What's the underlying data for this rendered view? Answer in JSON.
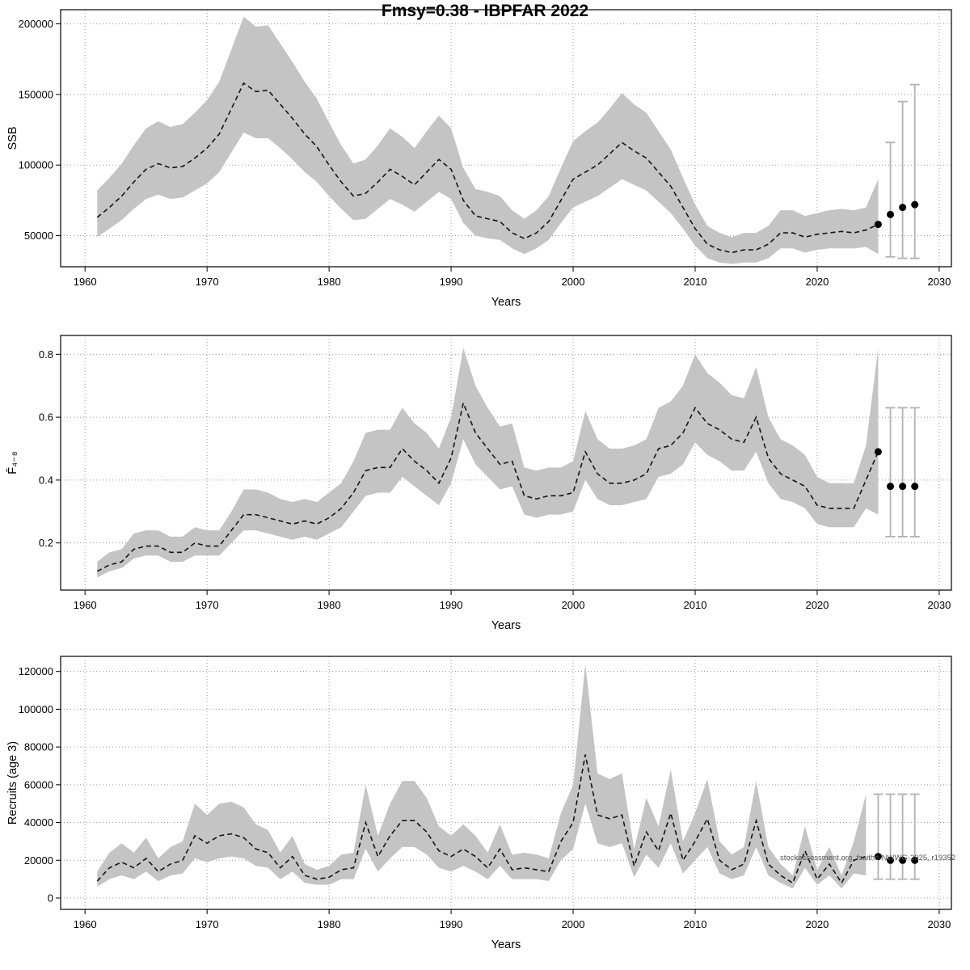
{
  "title": "Fmsy=0.38 - IBPFAR 2022",
  "watermark": "stockassessment.org, fsaithe-NWWG-2025, r19352",
  "chart_data": [
    {
      "type": "line",
      "name": "ssb",
      "title": "",
      "xlabel": "Years",
      "ylabel": "SSB",
      "xlim": [
        1958,
        2031
      ],
      "ylim": [
        28000,
        210000
      ],
      "xticks": [
        1960,
        1970,
        1980,
        1990,
        2000,
        2010,
        2020,
        2030
      ],
      "yticks": [
        50000,
        100000,
        150000,
        200000
      ],
      "grid": true,
      "legend": "none",
      "line_style": "dashed",
      "band_color": "#c4c4c4",
      "years": [
        1961,
        1962,
        1963,
        1964,
        1965,
        1966,
        1967,
        1968,
        1969,
        1970,
        1971,
        1972,
        1973,
        1974,
        1975,
        1976,
        1977,
        1978,
        1979,
        1980,
        1981,
        1982,
        1983,
        1984,
        1985,
        1986,
        1987,
        1988,
        1989,
        1990,
        1991,
        1992,
        1993,
        1994,
        1995,
        1996,
        1997,
        1998,
        1999,
        2000,
        2001,
        2002,
        2003,
        2004,
        2005,
        2006,
        2007,
        2008,
        2009,
        2010,
        2011,
        2012,
        2013,
        2014,
        2015,
        2016,
        2017,
        2018,
        2019,
        2020,
        2021,
        2022,
        2023,
        2024,
        2025
      ],
      "mean": [
        63000,
        70000,
        78000,
        88000,
        97000,
        101000,
        98000,
        99000,
        105000,
        112000,
        122000,
        140000,
        158000,
        152000,
        153000,
        143000,
        133000,
        122000,
        113000,
        100000,
        88000,
        78000,
        80000,
        88000,
        97000,
        92000,
        86000,
        95000,
        104000,
        97000,
        75000,
        64000,
        62000,
        60000,
        52000,
        48000,
        52000,
        60000,
        75000,
        90000,
        95000,
        100000,
        108000,
        116000,
        110000,
        105000,
        95000,
        85000,
        70000,
        55000,
        44000,
        40000,
        38000,
        40000,
        40000,
        44000,
        52000,
        52000,
        49000,
        51000,
        52000,
        53000,
        52000,
        54000,
        58000
      ],
      "lo": [
        49000,
        55000,
        61000,
        69000,
        76000,
        79000,
        76000,
        77000,
        82000,
        87000,
        95000,
        109000,
        123000,
        119000,
        119000,
        112000,
        104000,
        95000,
        88000,
        78000,
        69000,
        61000,
        62000,
        69000,
        76000,
        72000,
        67000,
        74000,
        81000,
        76000,
        59000,
        50000,
        48000,
        47000,
        41000,
        37000,
        41000,
        47000,
        59000,
        70000,
        74000,
        78000,
        84000,
        90000,
        86000,
        82000,
        74000,
        66000,
        55000,
        43000,
        34000,
        31000,
        30000,
        31000,
        31000,
        34000,
        41000,
        41000,
        38000,
        40000,
        41000,
        41000,
        41000,
        42000,
        37000
      ],
      "hi": [
        82000,
        91000,
        101000,
        114000,
        126000,
        131000,
        127000,
        129000,
        137000,
        146000,
        159000,
        182000,
        205000,
        198000,
        199000,
        186000,
        173000,
        159000,
        147000,
        130000,
        114000,
        101000,
        104000,
        114000,
        126000,
        120000,
        112000,
        124000,
        135000,
        126000,
        98000,
        83000,
        81000,
        78000,
        68000,
        62000,
        68000,
        78000,
        98000,
        117000,
        124000,
        130000,
        140000,
        151000,
        143000,
        137000,
        124000,
        111000,
        91000,
        72000,
        57000,
        52000,
        49000,
        52000,
        52000,
        57000,
        68000,
        68000,
        64000,
        66000,
        68000,
        69000,
        68000,
        70000,
        90000
      ],
      "end_dot": true,
      "forecast": {
        "x": [
          2026,
          2027,
          2028
        ],
        "y": [
          65000,
          70000,
          72000
        ],
        "lo": [
          35000,
          34000,
          34000
        ],
        "hi": [
          116000,
          145000,
          157000
        ]
      }
    },
    {
      "type": "line",
      "name": "fbar",
      "title": "",
      "xlabel": "Years",
      "ylabel": "F̄₄₋₈",
      "xlim": [
        1958,
        2031
      ],
      "ylim": [
        0.05,
        0.86
      ],
      "xticks": [
        1960,
        1970,
        1980,
        1990,
        2000,
        2010,
        2020,
        2030
      ],
      "yticks": [
        0.2,
        0.4,
        0.6,
        0.8
      ],
      "grid": true,
      "legend": "none",
      "line_style": "dashed",
      "band_color": "#c4c4c4",
      "years": [
        1961,
        1962,
        1963,
        1964,
        1965,
        1966,
        1967,
        1968,
        1969,
        1970,
        1971,
        1972,
        1973,
        1974,
        1975,
        1976,
        1977,
        1978,
        1979,
        1980,
        1981,
        1982,
        1983,
        1984,
        1985,
        1986,
        1987,
        1988,
        1989,
        1990,
        1991,
        1992,
        1993,
        1994,
        1995,
        1996,
        1997,
        1998,
        1999,
        2000,
        2001,
        2002,
        2003,
        2004,
        2005,
        2006,
        2007,
        2008,
        2009,
        2010,
        2011,
        2012,
        2013,
        2014,
        2015,
        2016,
        2017,
        2018,
        2019,
        2020,
        2021,
        2022,
        2023,
        2024,
        2025
      ],
      "mean": [
        0.11,
        0.13,
        0.14,
        0.18,
        0.19,
        0.19,
        0.17,
        0.17,
        0.2,
        0.19,
        0.19,
        0.24,
        0.29,
        0.29,
        0.28,
        0.27,
        0.26,
        0.27,
        0.26,
        0.28,
        0.31,
        0.36,
        0.43,
        0.44,
        0.44,
        0.5,
        0.46,
        0.43,
        0.39,
        0.47,
        0.645,
        0.55,
        0.5,
        0.45,
        0.46,
        0.35,
        0.34,
        0.35,
        0.35,
        0.36,
        0.49,
        0.42,
        0.39,
        0.39,
        0.4,
        0.42,
        0.5,
        0.51,
        0.55,
        0.63,
        0.58,
        0.56,
        0.53,
        0.52,
        0.6,
        0.47,
        0.42,
        0.4,
        0.38,
        0.32,
        0.31,
        0.31,
        0.31,
        0.4,
        0.49
      ],
      "lo": [
        0.09,
        0.11,
        0.12,
        0.15,
        0.16,
        0.16,
        0.14,
        0.14,
        0.16,
        0.16,
        0.16,
        0.2,
        0.24,
        0.24,
        0.23,
        0.22,
        0.21,
        0.22,
        0.21,
        0.23,
        0.25,
        0.3,
        0.35,
        0.36,
        0.36,
        0.41,
        0.38,
        0.35,
        0.32,
        0.39,
        0.53,
        0.45,
        0.41,
        0.37,
        0.38,
        0.29,
        0.28,
        0.29,
        0.29,
        0.3,
        0.4,
        0.34,
        0.32,
        0.32,
        0.33,
        0.34,
        0.41,
        0.42,
        0.45,
        0.52,
        0.48,
        0.46,
        0.43,
        0.43,
        0.49,
        0.39,
        0.34,
        0.33,
        0.31,
        0.26,
        0.25,
        0.25,
        0.25,
        0.31,
        0.29
      ],
      "hi": [
        0.14,
        0.17,
        0.18,
        0.23,
        0.24,
        0.24,
        0.22,
        0.22,
        0.25,
        0.24,
        0.24,
        0.3,
        0.37,
        0.37,
        0.36,
        0.34,
        0.33,
        0.34,
        0.33,
        0.36,
        0.39,
        0.46,
        0.55,
        0.56,
        0.56,
        0.63,
        0.58,
        0.55,
        0.5,
        0.6,
        0.82,
        0.7,
        0.63,
        0.57,
        0.58,
        0.44,
        0.43,
        0.44,
        0.44,
        0.46,
        0.62,
        0.53,
        0.5,
        0.5,
        0.51,
        0.53,
        0.63,
        0.65,
        0.7,
        0.8,
        0.74,
        0.71,
        0.67,
        0.66,
        0.76,
        0.6,
        0.53,
        0.51,
        0.48,
        0.41,
        0.39,
        0.39,
        0.39,
        0.51,
        0.82
      ],
      "end_dot": true,
      "forecast": {
        "x": [
          2026,
          2027,
          2028
        ],
        "y": [
          0.38,
          0.38,
          0.38
        ],
        "lo": [
          0.22,
          0.22,
          0.22
        ],
        "hi": [
          0.63,
          0.63,
          0.63
        ]
      }
    },
    {
      "type": "line",
      "name": "recruitment",
      "title": "",
      "xlabel": "Years",
      "ylabel": "Recruits (age 3)",
      "xlim": [
        1958,
        2031
      ],
      "ylim": [
        -6000,
        128000
      ],
      "xticks": [
        1960,
        1970,
        1980,
        1990,
        2000,
        2010,
        2020,
        2030
      ],
      "yticks": [
        0,
        20000,
        40000,
        60000,
        80000,
        100000,
        120000
      ],
      "grid": true,
      "legend": "none",
      "line_style": "dashed",
      "band_color": "#c4c4c4",
      "years": [
        1961,
        1962,
        1963,
        1964,
        1965,
        1966,
        1967,
        1968,
        1969,
        1970,
        1971,
        1972,
        1973,
        1974,
        1975,
        1976,
        1977,
        1978,
        1979,
        1980,
        1981,
        1982,
        1983,
        1984,
        1985,
        1986,
        1987,
        1988,
        1989,
        1990,
        1991,
        1992,
        1993,
        1994,
        1995,
        1996,
        1997,
        1998,
        1999,
        2000,
        2001,
        2002,
        2003,
        2004,
        2005,
        2006,
        2007,
        2008,
        2009,
        2010,
        2011,
        2012,
        2013,
        2014,
        2015,
        2016,
        2017,
        2018,
        2019,
        2020,
        2021,
        2022,
        2023,
        2024
      ],
      "mean": [
        9000,
        16000,
        19000,
        16000,
        21000,
        14000,
        18000,
        20000,
        33000,
        29000,
        33000,
        34000,
        32000,
        26000,
        24000,
        16000,
        22000,
        12000,
        10000,
        11000,
        15000,
        16000,
        40000,
        22000,
        33000,
        41000,
        41000,
        35000,
        25000,
        22000,
        26000,
        22000,
        16000,
        26000,
        15000,
        16000,
        15000,
        14000,
        30000,
        40000,
        76000,
        44000,
        42000,
        44000,
        17000,
        35000,
        25000,
        45000,
        20000,
        30000,
        42000,
        20000,
        15000,
        18000,
        41000,
        18000,
        12000,
        8000,
        25000,
        10000,
        18000,
        8000,
        20000,
        22000
      ],
      "lo": [
        6000,
        10000,
        12000,
        10000,
        14000,
        9000,
        12000,
        13000,
        21000,
        19000,
        21000,
        22000,
        21000,
        17000,
        16000,
        10000,
        14000,
        8000,
        7000,
        7000,
        10000,
        10000,
        26000,
        14000,
        21000,
        27000,
        27000,
        23000,
        16000,
        14000,
        17000,
        14000,
        10000,
        17000,
        10000,
        10000,
        10000,
        9000,
        20000,
        26000,
        50000,
        29000,
        27000,
        29000,
        11000,
        23000,
        16000,
        29000,
        13000,
        20000,
        27000,
        13000,
        10000,
        12000,
        27000,
        12000,
        8000,
        5000,
        16000,
        7000,
        12000,
        5000,
        13000,
        12000
      ],
      "hi": [
        14000,
        24000,
        29000,
        24000,
        32000,
        21000,
        27000,
        30000,
        50000,
        44000,
        50000,
        51000,
        48000,
        39000,
        36000,
        24000,
        33000,
        18000,
        15000,
        17000,
        23000,
        24000,
        60000,
        33000,
        50000,
        62000,
        62000,
        53000,
        38000,
        33000,
        39000,
        33000,
        24000,
        39000,
        23000,
        24000,
        23000,
        21000,
        45000,
        60000,
        124000,
        66000,
        63000,
        66000,
        26000,
        53000,
        38000,
        68000,
        30000,
        45000,
        63000,
        30000,
        23000,
        27000,
        62000,
        27000,
        18000,
        12000,
        38000,
        15000,
        27000,
        12000,
        30000,
        55000
      ],
      "end_dot": false,
      "forecast": {
        "x": [
          2025,
          2026,
          2027,
          2028
        ],
        "y": [
          22000,
          20000,
          20000,
          20000
        ],
        "lo": [
          10000,
          10000,
          10000,
          10000
        ],
        "hi": [
          55000,
          55000,
          55000,
          55000
        ]
      }
    }
  ]
}
